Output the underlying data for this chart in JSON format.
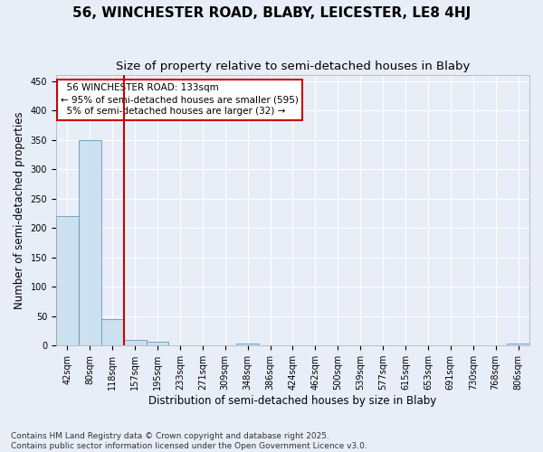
{
  "title": "56, WINCHESTER ROAD, BLABY, LEICESTER, LE8 4HJ",
  "subtitle": "Size of property relative to semi-detached houses in Blaby",
  "xlabel": "Distribution of semi-detached houses by size in Blaby",
  "ylabel": "Number of semi-detached properties",
  "footer": "Contains HM Land Registry data © Crown copyright and database right 2025.\nContains public sector information licensed under the Open Government Licence v3.0.",
  "bin_labels": [
    "42sqm",
    "80sqm",
    "118sqm",
    "157sqm",
    "195sqm",
    "233sqm",
    "271sqm",
    "309sqm",
    "348sqm",
    "386sqm",
    "424sqm",
    "462sqm",
    "500sqm",
    "539sqm",
    "577sqm",
    "615sqm",
    "653sqm",
    "691sqm",
    "730sqm",
    "768sqm",
    "806sqm"
  ],
  "bar_values": [
    220,
    350,
    45,
    10,
    7,
    0,
    0,
    0,
    4,
    0,
    0,
    0,
    0,
    0,
    0,
    0,
    0,
    0,
    0,
    0,
    4
  ],
  "bar_color": "#cce0f0",
  "bar_edgecolor": "#6699bb",
  "vertical_line_x": 2.5,
  "vline_color": "#cc0000",
  "annotation_text": "  56 WINCHESTER ROAD: 133sqm\n← 95% of semi-detached houses are smaller (595)\n  5% of semi-detached houses are larger (32) →",
  "annotation_box_color": "#cc0000",
  "ylim": [
    0,
    460
  ],
  "yticks": [
    0,
    50,
    100,
    150,
    200,
    250,
    300,
    350,
    400,
    450
  ],
  "background_color": "#e8eef8",
  "grid_color": "#ffffff",
  "title_fontsize": 11,
  "subtitle_fontsize": 9.5,
  "label_fontsize": 8.5,
  "tick_fontsize": 7,
  "footer_fontsize": 6.5,
  "ann_fontsize": 7.5
}
